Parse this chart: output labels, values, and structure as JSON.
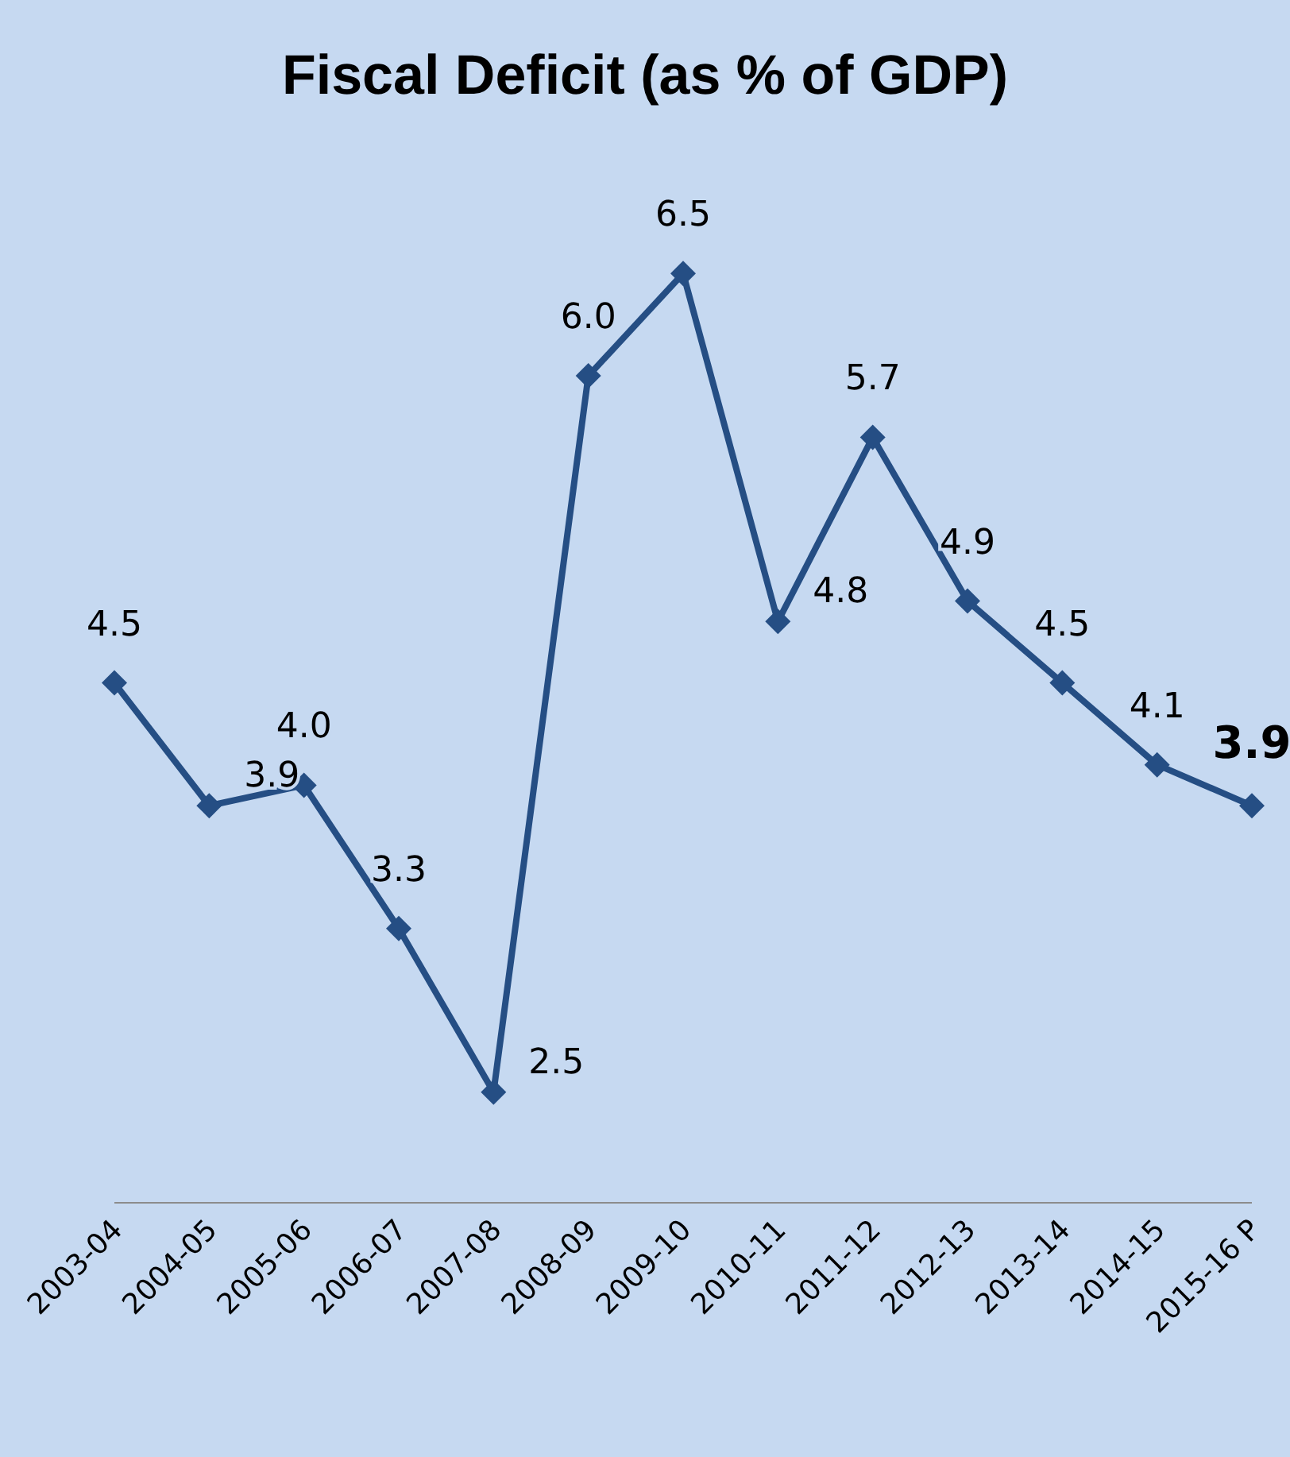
{
  "chart_data": {
    "type": "line",
    "title": "Fiscal Deficit (as % of GDP)",
    "categories": [
      "2003-04",
      "2004-05",
      "2005-06",
      "2006-07",
      "2007-08",
      "2008-09",
      "2009-10",
      "2010-11",
      "2011-12",
      "2012-13",
      "2013-14",
      "2014-15",
      "2015-16 P"
    ],
    "series": [
      {
        "color": "#254e84",
        "values": [
          4.5,
          3.9,
          4.0,
          3.3,
          2.5,
          6.0,
          6.5,
          4.8,
          5.7,
          4.9,
          4.5,
          4.1,
          3.9
        ],
        "value_labels": [
          "4.5",
          "3.9",
          "4.0",
          "3.3",
          "2.5",
          "6.0",
          "6.5",
          "4.8",
          "5.7",
          "4.9",
          "4.5",
          "4.1",
          "3.9"
        ]
      }
    ],
    "marker": "diamond",
    "line_style": "solid",
    "grid": false,
    "legend": false,
    "tick_labels": "x"
  }
}
